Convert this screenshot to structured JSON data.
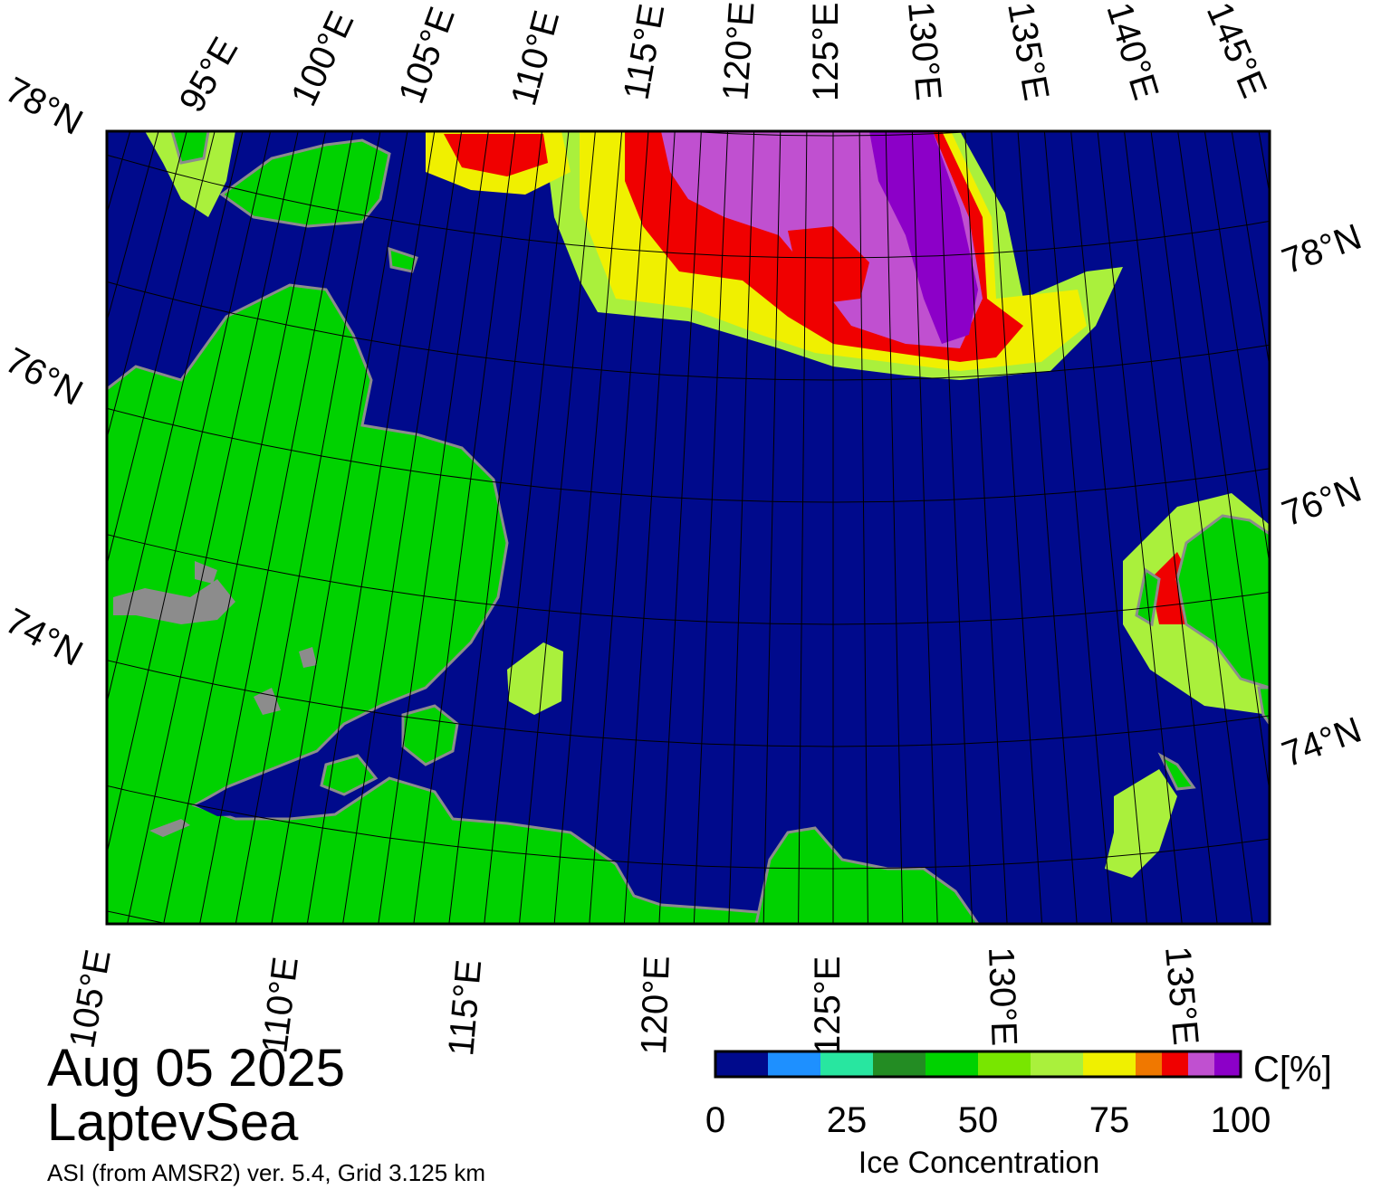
{
  "map": {
    "date": "Aug 05 2025",
    "region": "LaptevSea",
    "product": "ASI (from AMSR2) ver. 5.4,  Grid 3.125 km",
    "colors": {
      "ocean": "#000a8c",
      "land": "#00d200",
      "coast": "#8c8c8c",
      "graticule": "#000000"
    },
    "top_lon_labels": [
      "95°E",
      "100°E",
      "105°E",
      "110°E",
      "115°E",
      "120°E",
      "125°E",
      "130°E",
      "135°E",
      "140°E",
      "145°E"
    ],
    "bottom_lon_labels": [
      "105°E",
      "110°E",
      "115°E",
      "120°E",
      "125°E",
      "130°E",
      "135°E"
    ],
    "left_lat_labels": [
      "78°N",
      "76°N",
      "74°N"
    ],
    "right_lat_labels": [
      "78°N",
      "76°N",
      "74°N"
    ]
  },
  "legend": {
    "title": "Ice Concentration",
    "unit": "C[%]",
    "ticks": [
      "0",
      "25",
      "50",
      "75",
      "100"
    ],
    "bins": [
      {
        "from": 0,
        "to": 10,
        "color": "#000a8c"
      },
      {
        "from": 10,
        "to": 20,
        "color": "#1e90ff"
      },
      {
        "from": 20,
        "to": 30,
        "color": "#28e6a0"
      },
      {
        "from": 30,
        "to": 40,
        "color": "#238c23"
      },
      {
        "from": 40,
        "to": 50,
        "color": "#00d200"
      },
      {
        "from": 50,
        "to": 60,
        "color": "#78e600"
      },
      {
        "from": 60,
        "to": 70,
        "color": "#aaf03c"
      },
      {
        "from": 70,
        "to": 80,
        "color": "#f0f000"
      },
      {
        "from": 80,
        "to": 85,
        "color": "#f07800"
      },
      {
        "from": 85,
        "to": 90,
        "color": "#f00000"
      },
      {
        "from": 90,
        "to": 95,
        "color": "#c050d0"
      },
      {
        "from": 95,
        "to": 100,
        "color": "#8c00c8"
      }
    ]
  }
}
